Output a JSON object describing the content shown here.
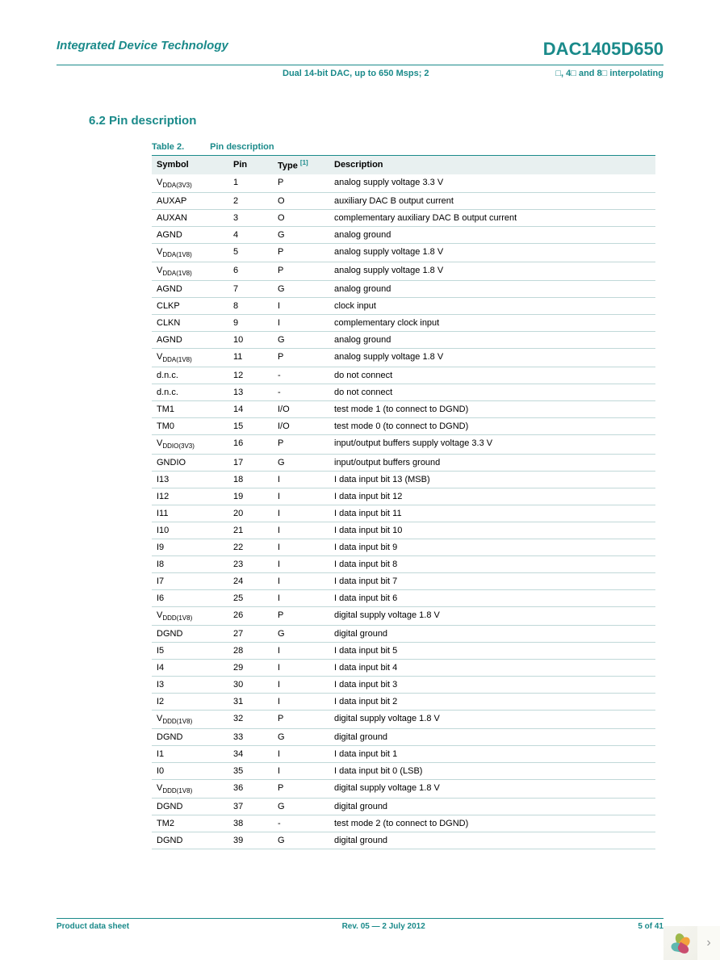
{
  "header": {
    "company": "Integrated Device Technology",
    "part_number": "DAC1405D650",
    "product_desc": "Dual 14-bit DAC, up to 650 Msps; 2",
    "product_suffix": "□, 4□ and 8□ interpolating"
  },
  "section": {
    "heading": "6.2 Pin description"
  },
  "table": {
    "label": "Table 2.",
    "title": "Pin description",
    "footnote_marker": "[1]",
    "columns": [
      "Symbol",
      "Pin",
      "Type",
      "Description"
    ],
    "header_bg": "#e8f0f0",
    "border_color": "#1a8a8a",
    "row_border_color": "#c0d8d8",
    "rows": [
      {
        "symbol": "V",
        "sub": "DDA(3V3)",
        "pin": "1",
        "type": "P",
        "desc": "analog supply voltage 3.3 V"
      },
      {
        "symbol": "AUXAP",
        "sub": "",
        "pin": "2",
        "type": "O",
        "desc": "auxiliary DAC B output current"
      },
      {
        "symbol": "AUXAN",
        "sub": "",
        "pin": "3",
        "type": "O",
        "desc": "complementary auxiliary DAC B output current"
      },
      {
        "symbol": "AGND",
        "sub": "",
        "pin": "4",
        "type": "G",
        "desc": "analog ground"
      },
      {
        "symbol": "V",
        "sub": "DDA(1V8)",
        "pin": "5",
        "type": "P",
        "desc": "analog supply voltage 1.8 V"
      },
      {
        "symbol": "V",
        "sub": "DDA(1V8)",
        "pin": "6",
        "type": "P",
        "desc": "analog supply voltage 1.8 V"
      },
      {
        "symbol": "AGND",
        "sub": "",
        "pin": "7",
        "type": "G",
        "desc": "analog ground"
      },
      {
        "symbol": "CLKP",
        "sub": "",
        "pin": "8",
        "type": "I",
        "desc": "clock input"
      },
      {
        "symbol": "CLKN",
        "sub": "",
        "pin": "9",
        "type": "I",
        "desc": "complementary clock input"
      },
      {
        "symbol": "AGND",
        "sub": "",
        "pin": "10",
        "type": "G",
        "desc": "analog ground"
      },
      {
        "symbol": "V",
        "sub": "DDA(1V8)",
        "pin": "11",
        "type": "P",
        "desc": "analog supply voltage 1.8 V"
      },
      {
        "symbol": "d.n.c.",
        "sub": "",
        "pin": "12",
        "type": "-",
        "desc": "do not connect"
      },
      {
        "symbol": "d.n.c.",
        "sub": "",
        "pin": "13",
        "type": "-",
        "desc": "do not connect"
      },
      {
        "symbol": "TM1",
        "sub": "",
        "pin": "14",
        "type": "I/O",
        "desc": "test mode 1 (to connect to DGND)"
      },
      {
        "symbol": "TM0",
        "sub": "",
        "pin": "15",
        "type": "I/O",
        "desc": "test mode 0 (to connect to DGND)"
      },
      {
        "symbol": "V",
        "sub": "DDIO(3V3)",
        "pin": "16",
        "type": "P",
        "desc": "input/output buffers supply voltage 3.3 V"
      },
      {
        "symbol": "GNDIO",
        "sub": "",
        "pin": "17",
        "type": "G",
        "desc": "input/output buffers ground"
      },
      {
        "symbol": "I13",
        "sub": "",
        "pin": "18",
        "type": "I",
        "desc": "I data input bit 13 (MSB)"
      },
      {
        "symbol": "I12",
        "sub": "",
        "pin": "19",
        "type": "I",
        "desc": "I data input bit 12"
      },
      {
        "symbol": "I11",
        "sub": "",
        "pin": "20",
        "type": "I",
        "desc": "I data input bit 11"
      },
      {
        "symbol": "I10",
        "sub": "",
        "pin": "21",
        "type": "I",
        "desc": "I data input bit 10"
      },
      {
        "symbol": "I9",
        "sub": "",
        "pin": "22",
        "type": "I",
        "desc": "I data input bit 9"
      },
      {
        "symbol": "I8",
        "sub": "",
        "pin": "23",
        "type": "I",
        "desc": "I data input bit 8"
      },
      {
        "symbol": "I7",
        "sub": "",
        "pin": "24",
        "type": "I",
        "desc": "I data input bit 7"
      },
      {
        "symbol": "I6",
        "sub": "",
        "pin": "25",
        "type": "I",
        "desc": "I data input bit 6"
      },
      {
        "symbol": "V",
        "sub": "DDD(1V8)",
        "pin": "26",
        "type": "P",
        "desc": "digital supply voltage 1.8 V"
      },
      {
        "symbol": "DGND",
        "sub": "",
        "pin": "27",
        "type": "G",
        "desc": "digital ground"
      },
      {
        "symbol": "I5",
        "sub": "",
        "pin": "28",
        "type": "I",
        "desc": "I data input bit 5"
      },
      {
        "symbol": "I4",
        "sub": "",
        "pin": "29",
        "type": "I",
        "desc": "I data input bit 4"
      },
      {
        "symbol": "I3",
        "sub": "",
        "pin": "30",
        "type": "I",
        "desc": "I data input bit 3"
      },
      {
        "symbol": "I2",
        "sub": "",
        "pin": "31",
        "type": "I",
        "desc": "I data input bit 2"
      },
      {
        "symbol": "V",
        "sub": "DDD(1V8)",
        "pin": "32",
        "type": "P",
        "desc": "digital supply voltage 1.8 V"
      },
      {
        "symbol": "DGND",
        "sub": "",
        "pin": "33",
        "type": "G",
        "desc": "digital ground"
      },
      {
        "symbol": "I1",
        "sub": "",
        "pin": "34",
        "type": "I",
        "desc": "I data input bit 1"
      },
      {
        "symbol": "I0",
        "sub": "",
        "pin": "35",
        "type": "I",
        "desc": "I data input bit 0 (LSB)"
      },
      {
        "symbol": "V",
        "sub": "DDD(1V8)",
        "pin": "36",
        "type": "P",
        "desc": "digital supply voltage 1.8 V"
      },
      {
        "symbol": "DGND",
        "sub": "",
        "pin": "37",
        "type": "G",
        "desc": "digital ground"
      },
      {
        "symbol": "TM2",
        "sub": "",
        "pin": "38",
        "type": "-",
        "desc": "test mode 2 (to connect to DGND)"
      },
      {
        "symbol": "DGND",
        "sub": "",
        "pin": "39",
        "type": "G",
        "desc": "digital ground"
      }
    ]
  },
  "footer": {
    "left": "Product data sheet",
    "center": "Rev. 05 — 2 July 2012",
    "right": "5 of 41"
  },
  "colors": {
    "accent": "#1a8a8a",
    "header_bg": "#e8f0f0",
    "row_border": "#c0d8d8"
  }
}
